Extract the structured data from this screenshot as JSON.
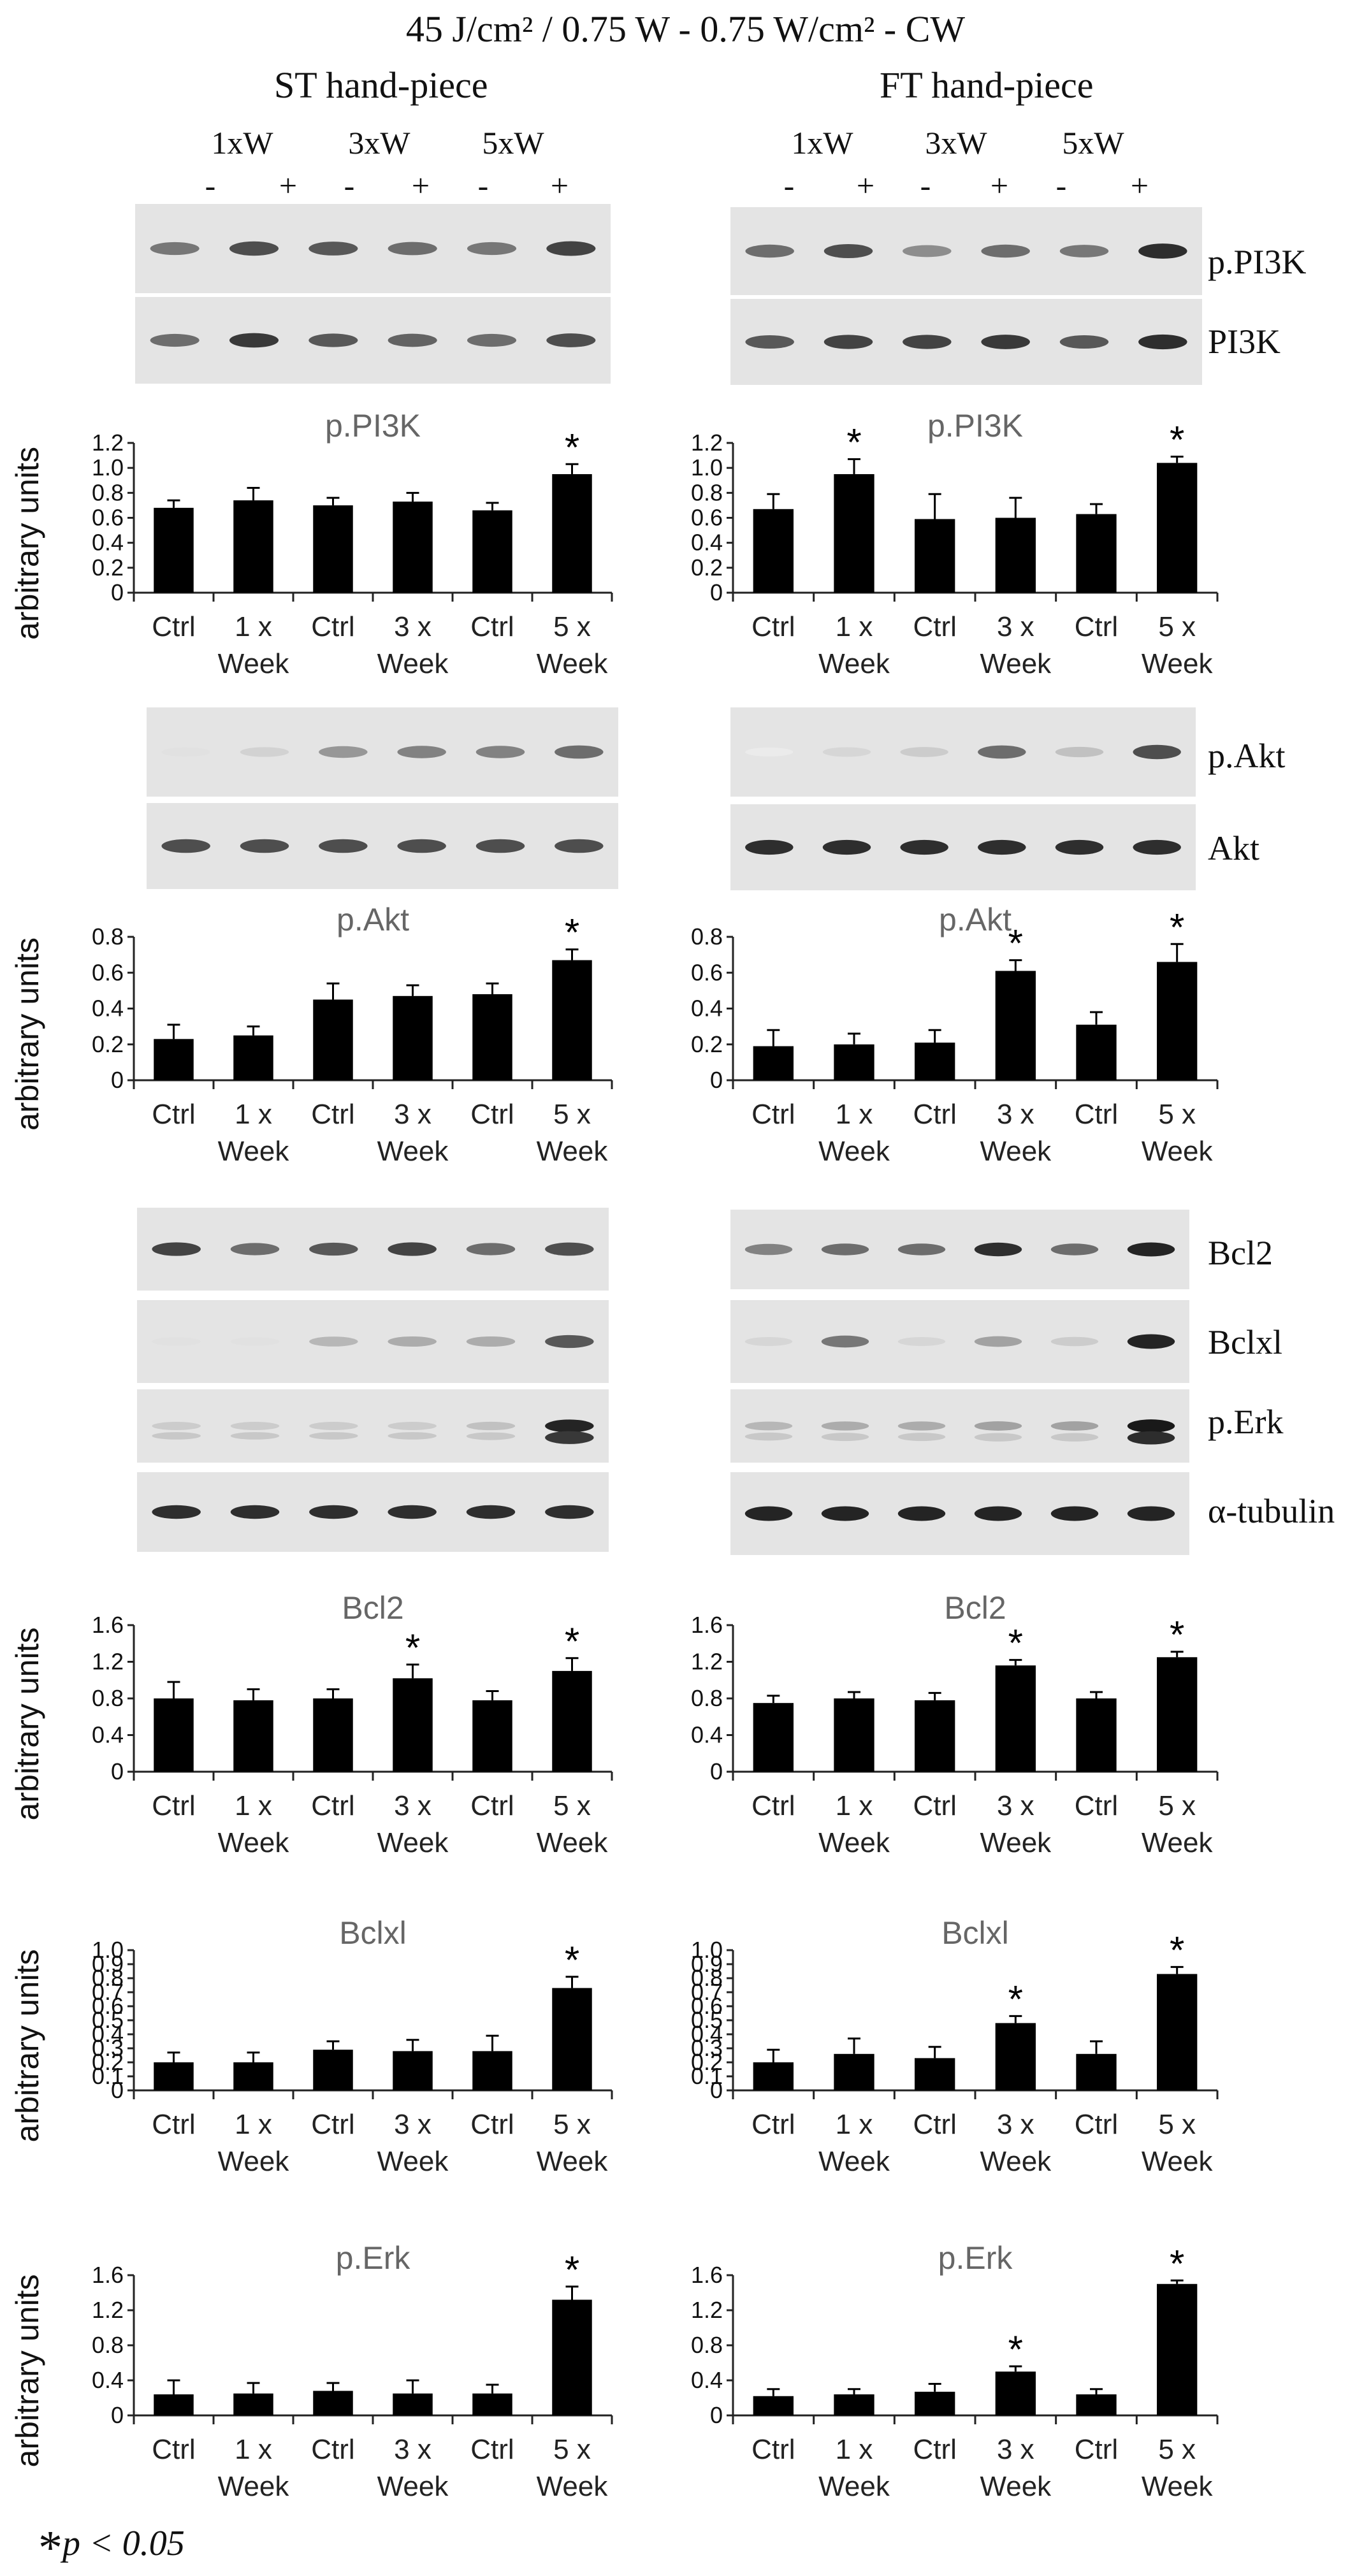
{
  "figure": {
    "title": "45 J/cm² / 0.75 W - 0.75 W/cm² - CW",
    "left_header": "ST hand-piece",
    "right_header": "FT hand-piece",
    "group_labels": [
      "1xW",
      "3xW",
      "5xW"
    ],
    "lane_signs": [
      "-",
      "+",
      "-",
      "+",
      "-",
      "+"
    ],
    "blot_labels": {
      "ppi3k": "p.PI3K",
      "pi3k": "PI3K",
      "pakt": "p.Akt",
      "akt": "Akt",
      "bcl2": "Bcl2",
      "bclxl": "Bclxl",
      "perk": "p.Erk",
      "tubulin": "α-tubulin"
    },
    "footnote": {
      "star": "*",
      "text": "p < 0.05"
    }
  },
  "chart_data": [
    {
      "id": "pi3k-st",
      "type": "bar",
      "title": "p.PI3K",
      "ylabel": "arbitrary units",
      "categories": [
        "Ctrl",
        "1 x Week",
        "Ctrl",
        "3 x Week",
        "Ctrl",
        "5 x Week"
      ],
      "values": [
        0.68,
        0.74,
        0.7,
        0.73,
        0.66,
        0.95
      ],
      "errors": [
        0.06,
        0.1,
        0.06,
        0.07,
        0.06,
        0.08
      ],
      "significant": [
        false,
        false,
        false,
        false,
        false,
        true
      ],
      "ylim": [
        0,
        1.2
      ],
      "yticks": [
        "0",
        "0.2",
        "0.4",
        "0.6",
        "0.8",
        "1.0",
        "1.2"
      ]
    },
    {
      "id": "pi3k-ft",
      "type": "bar",
      "title": "p.PI3K",
      "ylabel": "",
      "categories": [
        "Ctrl",
        "1 x Week",
        "Ctrl",
        "3 x Week",
        "Ctrl",
        "5 x Week"
      ],
      "values": [
        0.67,
        0.95,
        0.59,
        0.6,
        0.63,
        1.04
      ],
      "errors": [
        0.12,
        0.12,
        0.2,
        0.16,
        0.08,
        0.05
      ],
      "significant": [
        false,
        true,
        false,
        false,
        false,
        true
      ],
      "ylim": [
        0,
        1.2
      ],
      "yticks": [
        "0",
        "0.2",
        "0.4",
        "0.6",
        "0.8",
        "1.0",
        "1.2"
      ]
    },
    {
      "id": "akt-st",
      "type": "bar",
      "title": "p.Akt",
      "ylabel": "arbitrary units",
      "categories": [
        "Ctrl",
        "1 x Week",
        "Ctrl",
        "3 x Week",
        "Ctrl",
        "5 x Week"
      ],
      "values": [
        0.23,
        0.25,
        0.45,
        0.47,
        0.48,
        0.67
      ],
      "errors": [
        0.08,
        0.05,
        0.09,
        0.06,
        0.06,
        0.06
      ],
      "significant": [
        false,
        false,
        false,
        false,
        false,
        true
      ],
      "ylim": [
        0,
        0.8
      ],
      "yticks": [
        "0",
        "0.2",
        "0.4",
        "0.6",
        "0.8"
      ]
    },
    {
      "id": "akt-ft",
      "type": "bar",
      "title": "p.Akt",
      "ylabel": "",
      "categories": [
        "Ctrl",
        "1 x Week",
        "Ctrl",
        "3 x Week",
        "Ctrl",
        "5 x Week"
      ],
      "values": [
        0.19,
        0.2,
        0.21,
        0.61,
        0.31,
        0.66
      ],
      "errors": [
        0.09,
        0.06,
        0.07,
        0.06,
        0.07,
        0.1
      ],
      "significant": [
        false,
        false,
        false,
        true,
        false,
        true
      ],
      "ylim": [
        0,
        0.8
      ],
      "yticks": [
        "0",
        "0.2",
        "0.4",
        "0.6",
        "0.8"
      ]
    },
    {
      "id": "bcl2-st",
      "type": "bar",
      "title": "Bcl2",
      "ylabel": "arbitrary units",
      "categories": [
        "Ctrl",
        "1 x Week",
        "Ctrl",
        "3 x Week",
        "Ctrl",
        "5 x Week"
      ],
      "values": [
        0.8,
        0.78,
        0.8,
        1.02,
        0.78,
        1.1
      ],
      "errors": [
        0.18,
        0.12,
        0.1,
        0.15,
        0.1,
        0.14
      ],
      "significant": [
        false,
        false,
        false,
        true,
        false,
        true
      ],
      "ylim": [
        0,
        1.6
      ],
      "yticks": [
        "0",
        "0.4",
        "0.8",
        "1.2",
        "1.6"
      ]
    },
    {
      "id": "bcl2-ft",
      "type": "bar",
      "title": "Bcl2",
      "ylabel": "",
      "categories": [
        "Ctrl",
        "1 x Week",
        "Ctrl",
        "3 x Week",
        "Ctrl",
        "5 x Week"
      ],
      "values": [
        0.75,
        0.8,
        0.78,
        1.16,
        0.8,
        1.25
      ],
      "errors": [
        0.08,
        0.07,
        0.08,
        0.06,
        0.07,
        0.06
      ],
      "significant": [
        false,
        false,
        false,
        true,
        false,
        true
      ],
      "ylim": [
        0,
        1.6
      ],
      "yticks": [
        "0",
        "0.4",
        "0.8",
        "1.2",
        "1.6"
      ]
    },
    {
      "id": "bclxl-st",
      "type": "bar",
      "title": "Bclxl",
      "ylabel": "arbitrary units",
      "categories": [
        "Ctrl",
        "1 x Week",
        "Ctrl",
        "3 x Week",
        "Ctrl",
        "5 x Week"
      ],
      "values": [
        0.2,
        0.2,
        0.29,
        0.28,
        0.28,
        0.73
      ],
      "errors": [
        0.07,
        0.07,
        0.06,
        0.08,
        0.11,
        0.08
      ],
      "significant": [
        false,
        false,
        false,
        false,
        false,
        true
      ],
      "ylim": [
        0,
        1.0
      ],
      "yticks": [
        "0",
        "0.1",
        "0.2",
        "0.3",
        "0.4",
        "0.5",
        "0.6",
        "0.7",
        "0.8",
        "0.9",
        "1.0"
      ]
    },
    {
      "id": "bclxl-ft",
      "type": "bar",
      "title": "Bclxl",
      "ylabel": "",
      "categories": [
        "Ctrl",
        "1 x Week",
        "Ctrl",
        "3 x Week",
        "Ctrl",
        "5 x Week"
      ],
      "values": [
        0.2,
        0.26,
        0.23,
        0.48,
        0.26,
        0.83
      ],
      "errors": [
        0.09,
        0.11,
        0.08,
        0.05,
        0.09,
        0.05
      ],
      "significant": [
        false,
        false,
        false,
        true,
        false,
        true
      ],
      "ylim": [
        0,
        1.0
      ],
      "yticks": [
        "0",
        "0.1",
        "0.2",
        "0.3",
        "0.4",
        "0.5",
        "0.6",
        "0.7",
        "0.8",
        "0.9",
        "1.0"
      ]
    },
    {
      "id": "erk-st",
      "type": "bar",
      "title": "p.Erk",
      "ylabel": "arbitrary units",
      "categories": [
        "Ctrl",
        "1 x Week",
        "Ctrl",
        "3 x Week",
        "Ctrl",
        "5 x Week"
      ],
      "values": [
        0.24,
        0.25,
        0.28,
        0.25,
        0.25,
        1.32
      ],
      "errors": [
        0.16,
        0.12,
        0.09,
        0.15,
        0.1,
        0.15
      ],
      "significant": [
        false,
        false,
        false,
        false,
        false,
        true
      ],
      "ylim": [
        0,
        1.6
      ],
      "yticks": [
        "0",
        "0.4",
        "0.8",
        "1.2",
        "1.6"
      ]
    },
    {
      "id": "erk-ft",
      "type": "bar",
      "title": "p.Erk",
      "ylabel": "",
      "categories": [
        "Ctrl",
        "1 x Week",
        "Ctrl",
        "3 x Week",
        "Ctrl",
        "5 x Week"
      ],
      "values": [
        0.22,
        0.24,
        0.27,
        0.5,
        0.24,
        1.5
      ],
      "errors": [
        0.08,
        0.06,
        0.09,
        0.06,
        0.06,
        0.04
      ],
      "significant": [
        false,
        false,
        false,
        true,
        false,
        true
      ],
      "ylim": [
        0,
        1.6
      ],
      "yticks": [
        "0",
        "0.4",
        "0.8",
        "1.2",
        "1.6"
      ]
    }
  ],
  "blots": [
    {
      "id": "st-ppi3k",
      "side": "st",
      "protein": "p.PI3K",
      "intensity": [
        0.55,
        0.75,
        0.7,
        0.6,
        0.55,
        0.8
      ]
    },
    {
      "id": "st-pi3k",
      "side": "st",
      "protein": "PI3K",
      "intensity": [
        0.6,
        0.85,
        0.7,
        0.65,
        0.6,
        0.75
      ]
    },
    {
      "id": "ft-ppi3k",
      "side": "ft",
      "protein": "p.PI3K",
      "intensity": [
        0.6,
        0.75,
        0.45,
        0.6,
        0.55,
        0.9
      ]
    },
    {
      "id": "ft-pi3k",
      "side": "ft",
      "protein": "PI3K",
      "intensity": [
        0.7,
        0.8,
        0.8,
        0.85,
        0.7,
        0.9
      ]
    },
    {
      "id": "st-pakt",
      "side": "st",
      "protein": "p.Akt",
      "intensity": [
        0.05,
        0.12,
        0.4,
        0.5,
        0.5,
        0.6
      ]
    },
    {
      "id": "st-akt",
      "side": "st",
      "protein": "Akt",
      "intensity": [
        0.75,
        0.75,
        0.75,
        0.75,
        0.75,
        0.75
      ]
    },
    {
      "id": "ft-pakt",
      "side": "ft",
      "protein": "p.Akt",
      "intensity": [
        0.0,
        0.1,
        0.15,
        0.6,
        0.2,
        0.75
      ]
    },
    {
      "id": "ft-akt",
      "side": "ft",
      "protein": "Akt",
      "intensity": [
        0.9,
        0.9,
        0.9,
        0.9,
        0.9,
        0.9
      ]
    },
    {
      "id": "st-bcl2",
      "side": "st",
      "protein": "Bcl2",
      "intensity": [
        0.8,
        0.6,
        0.7,
        0.8,
        0.6,
        0.75
      ]
    },
    {
      "id": "st-bclxl",
      "side": "st",
      "protein": "Bclxl",
      "intensity": [
        0.05,
        0.05,
        0.25,
        0.3,
        0.3,
        0.7
      ]
    },
    {
      "id": "st-perk",
      "side": "st",
      "protein": "p.Erk",
      "intensity": [
        0.15,
        0.15,
        0.15,
        0.15,
        0.2,
        0.95
      ]
    },
    {
      "id": "st-tub",
      "side": "st",
      "protein": "α-tubulin",
      "intensity": [
        0.9,
        0.9,
        0.9,
        0.9,
        0.9,
        0.9
      ]
    },
    {
      "id": "ft-bcl2",
      "side": "ft",
      "protein": "Bcl2",
      "intensity": [
        0.5,
        0.6,
        0.6,
        0.9,
        0.6,
        0.95
      ]
    },
    {
      "id": "ft-bclxl",
      "side": "ft",
      "protein": "Bclxl",
      "intensity": [
        0.1,
        0.55,
        0.1,
        0.35,
        0.15,
        0.95
      ]
    },
    {
      "id": "ft-perk",
      "side": "ft",
      "protein": "p.Erk",
      "intensity": [
        0.25,
        0.3,
        0.3,
        0.35,
        0.35,
        1.0
      ]
    },
    {
      "id": "ft-tub",
      "side": "ft",
      "protein": "α-tubulin",
      "intensity": [
        0.95,
        0.95,
        0.95,
        0.95,
        0.95,
        0.95
      ]
    }
  ]
}
